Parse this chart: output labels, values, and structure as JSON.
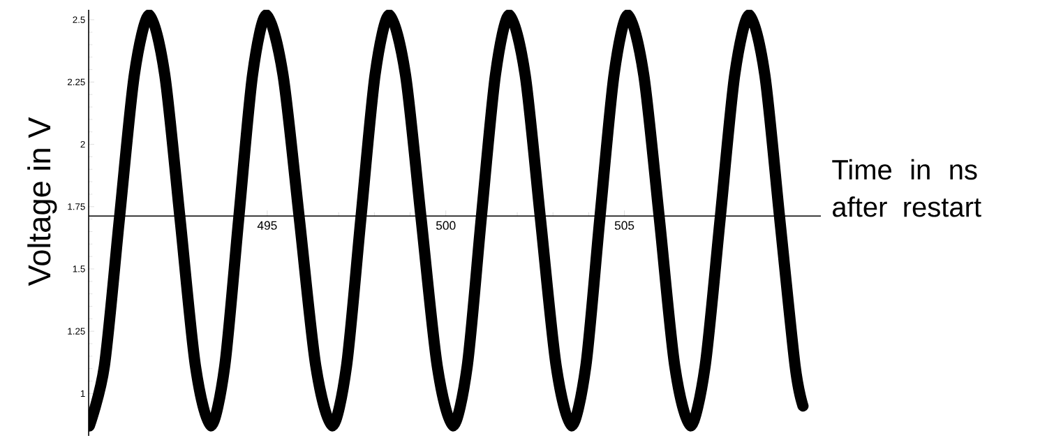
{
  "chart_data": {
    "type": "line",
    "xlabel": "Time in ns after restart",
    "ylabel": "Voltage in V",
    "x": [
      490.02,
      490.44,
      490.86,
      491.28,
      491.7,
      492.13,
      492.56,
      492.99,
      493.42,
      493.81,
      494.2,
      494.59,
      494.98,
      495.44,
      495.9,
      496.36,
      496.82,
      497.22,
      497.62,
      498.02,
      498.42,
      498.87,
      499.31,
      499.76,
      500.2,
      500.6,
      500.99,
      501.39,
      501.78,
      502.22,
      502.65,
      503.09,
      503.52,
      503.92,
      504.31,
      504.71,
      505.1,
      505.54,
      505.98,
      506.41,
      506.85,
      507.26,
      507.68,
      508.09,
      508.5,
      508.93,
      509.35,
      509.78,
      510.0
    ],
    "series": [
      {
        "color": "#000000",
        "line_style": "solid",
        "values": [
          0.87,
          1.11,
          1.7,
          2.28,
          2.52,
          2.28,
          1.7,
          1.11,
          0.87,
          1.11,
          1.7,
          2.28,
          2.52,
          2.28,
          1.7,
          1.11,
          0.87,
          1.11,
          1.7,
          2.28,
          2.52,
          2.28,
          1.7,
          1.11,
          0.87,
          1.11,
          1.7,
          2.28,
          2.52,
          2.28,
          1.7,
          1.11,
          0.87,
          1.11,
          1.7,
          2.28,
          2.52,
          2.28,
          1.7,
          1.11,
          0.87,
          1.11,
          1.7,
          2.28,
          2.52,
          2.28,
          1.7,
          1.11,
          0.95
        ]
      }
    ],
    "xlim": [
      490,
      510.5
    ],
    "ylim": [
      0.83,
      2.54
    ],
    "xticks": [
      495,
      500,
      505
    ],
    "yticks": [
      1,
      1.25,
      1.5,
      1.75,
      2,
      2.25,
      2.5
    ],
    "marker": "none"
  }
}
